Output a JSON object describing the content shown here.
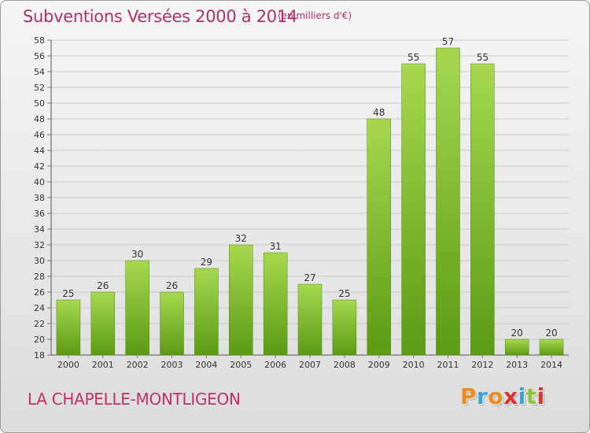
{
  "header": {
    "title": "Subventions Versées 2000 à 2014",
    "unit": "(en milliers d'€)"
  },
  "footer": {
    "commune": "LA CHAPELLE-MONTLIGEON",
    "logo_text": "Proxiti",
    "logo_colors": [
      "#f08a1c",
      "#3aa0d8",
      "#f08a1c",
      "#e0302a",
      "#3aa0d8",
      "#8cc43c",
      "#e0302a"
    ]
  },
  "colors": {
    "bar_light": "#a6d84e",
    "bar_dark": "#5c9a14",
    "grid": "#c8c8c8",
    "title": "#b0306a"
  },
  "chart_data": {
    "type": "bar",
    "categories": [
      "2000",
      "2001",
      "2002",
      "2003",
      "2004",
      "2005",
      "2006",
      "2007",
      "2008",
      "2009",
      "2010",
      "2011",
      "2012",
      "2013",
      "2014"
    ],
    "values": [
      25,
      26,
      30,
      26,
      29,
      32,
      31,
      27,
      25,
      48,
      55,
      57,
      55,
      20,
      20
    ],
    "title": "Subventions Versées 2000 à 2014",
    "ylim": [
      18,
      58
    ],
    "yticks": [
      18,
      20,
      22,
      24,
      26,
      28,
      30,
      32,
      34,
      36,
      38,
      40,
      42,
      44,
      46,
      48,
      50,
      52,
      54,
      56,
      58
    ],
    "grid": true
  }
}
